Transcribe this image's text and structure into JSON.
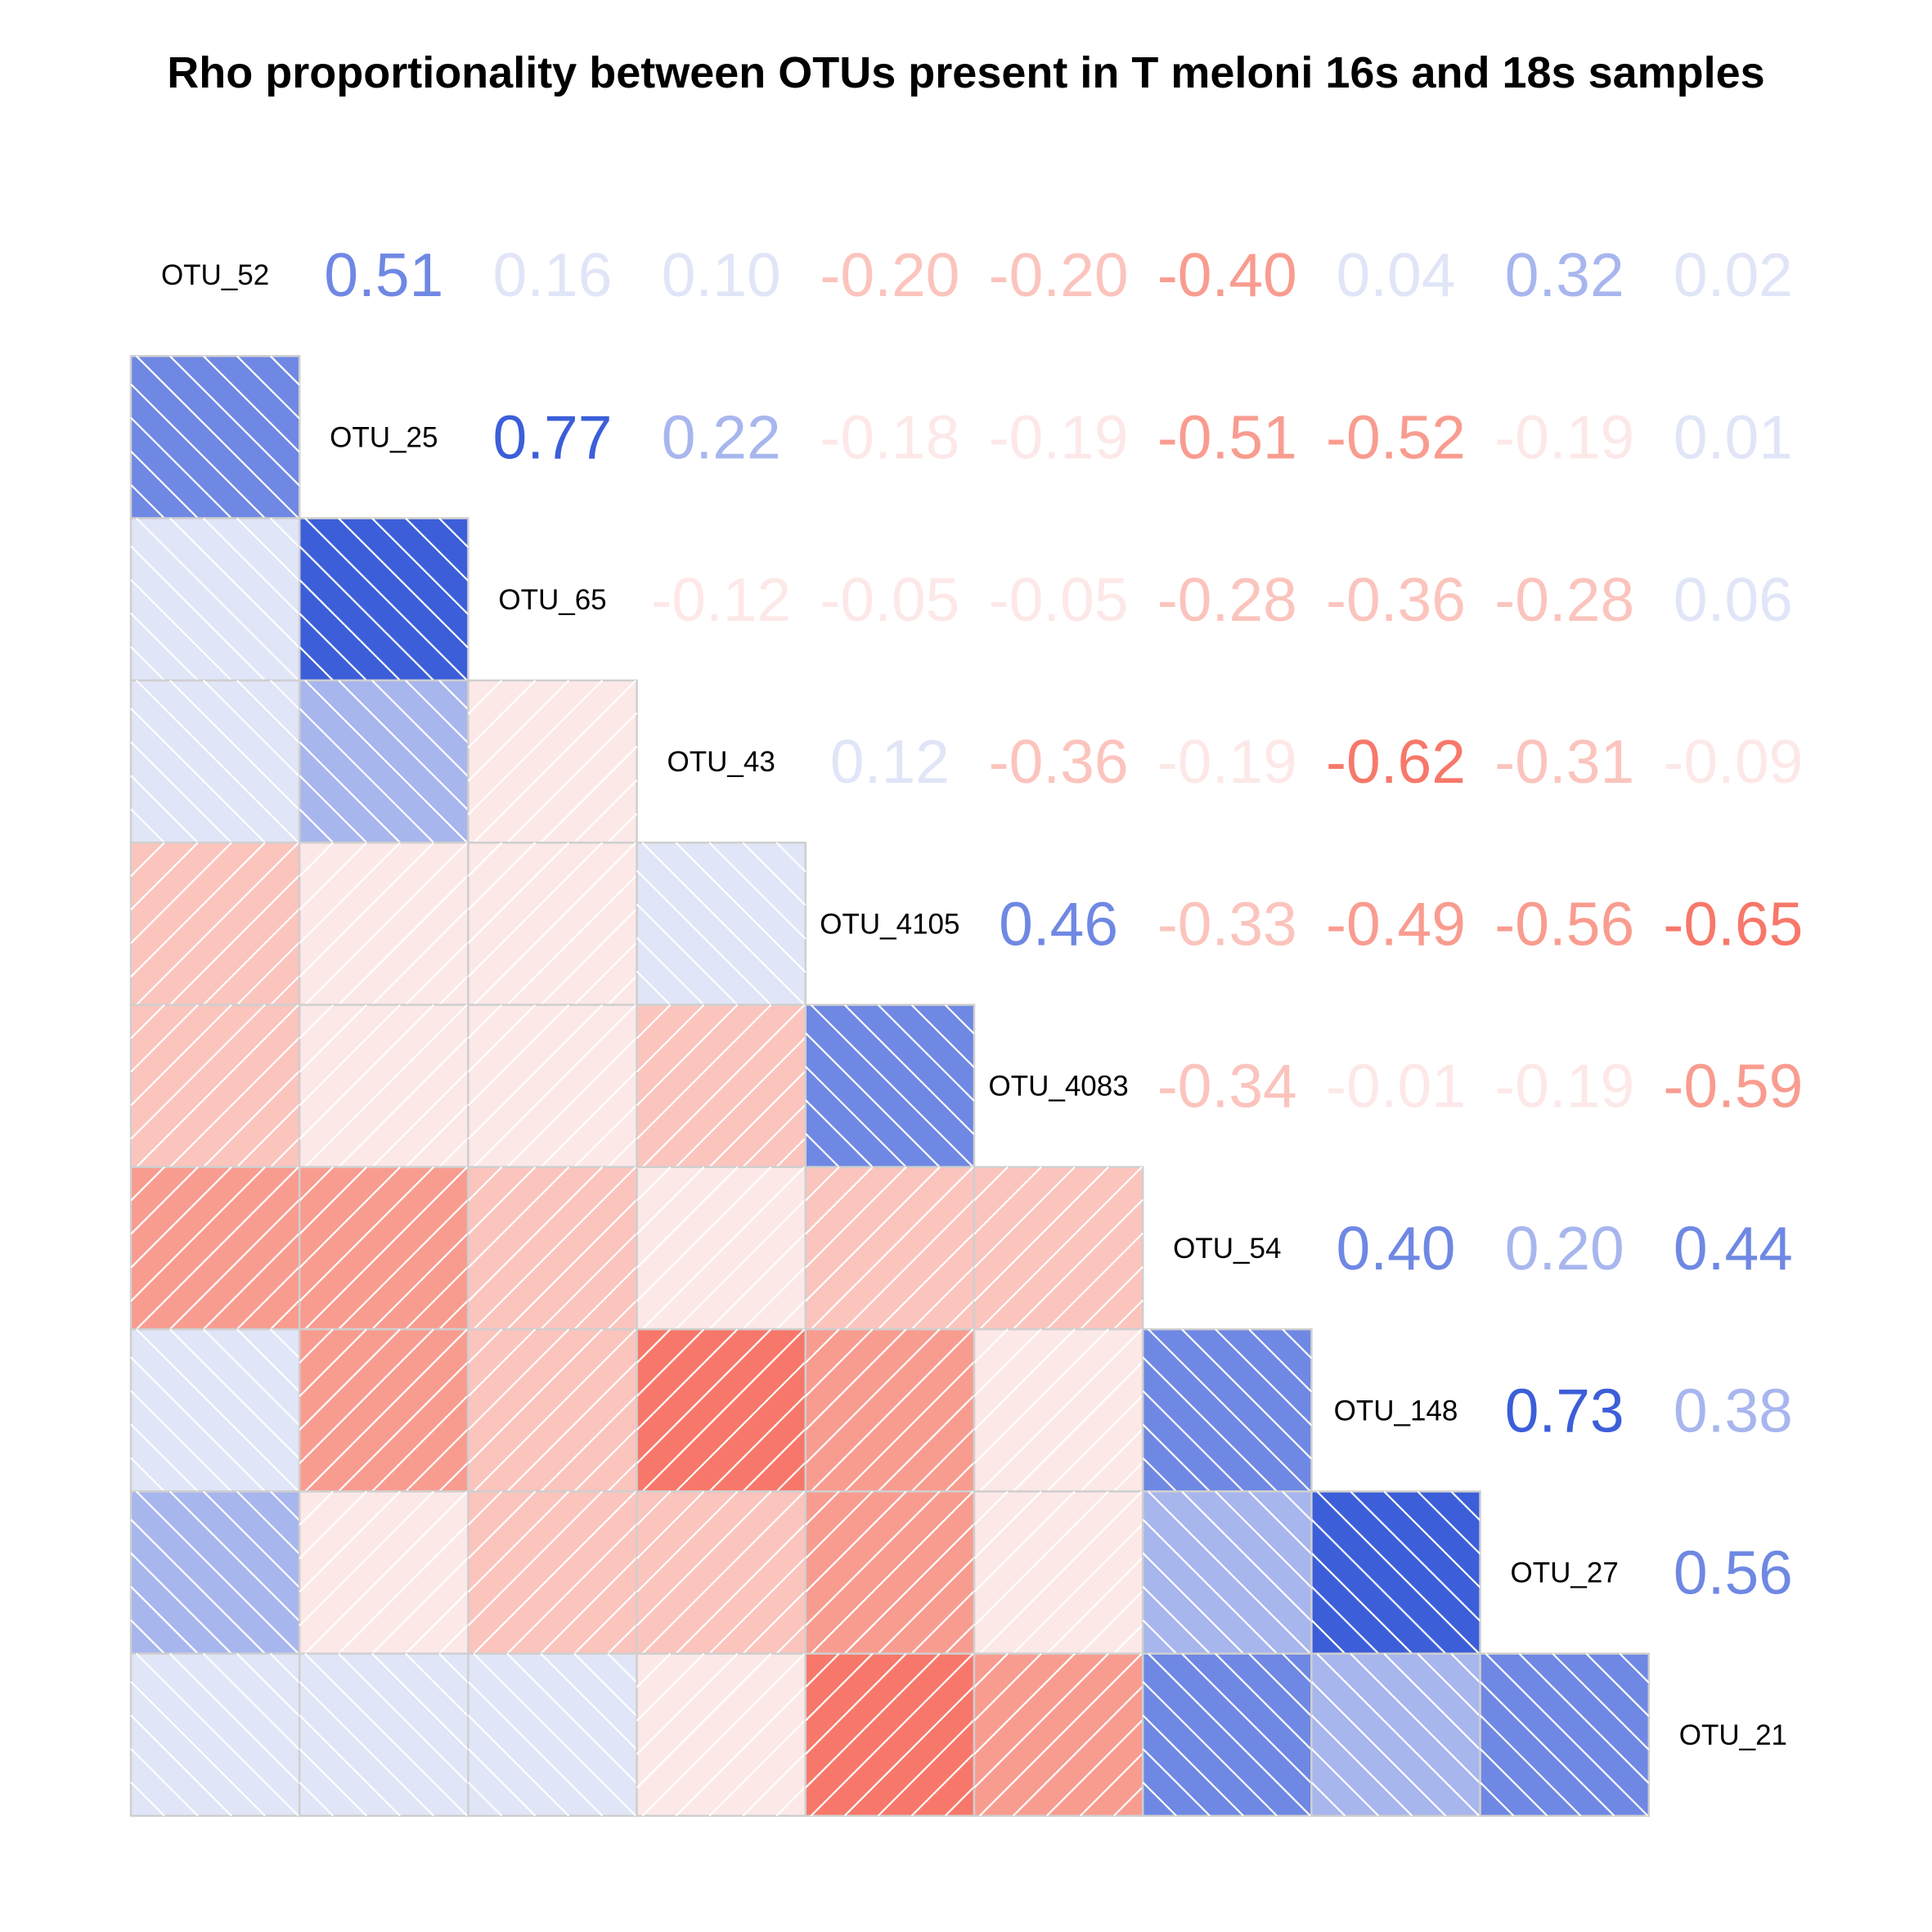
{
  "chart_data": {
    "type": "heatmap",
    "title": "Rho proportionality between OTUs present in T meloni 16s and 18s samples",
    "variables": [
      "OTU_52",
      "OTU_25",
      "OTU_65",
      "OTU_43",
      "OTU_4105",
      "OTU_4083",
      "OTU_54",
      "OTU_148",
      "OTU_27",
      "OTU_21"
    ],
    "matrix": [
      [
        1,
        0.51,
        0.16,
        0.1,
        -0.2,
        -0.2,
        -0.4,
        0.04,
        0.32,
        0.02
      ],
      [
        0.51,
        1,
        0.77,
        0.22,
        -0.18,
        -0.19,
        -0.51,
        -0.52,
        -0.19,
        0.01
      ],
      [
        0.16,
        0.77,
        1,
        -0.12,
        -0.05,
        -0.05,
        -0.28,
        -0.36,
        -0.28,
        0.06
      ],
      [
        0.1,
        0.22,
        -0.12,
        1,
        0.12,
        -0.36,
        -0.19,
        -0.62,
        -0.31,
        -0.09
      ],
      [
        -0.2,
        -0.18,
        -0.05,
        0.12,
        1,
        0.46,
        -0.33,
        -0.49,
        -0.56,
        -0.65
      ],
      [
        -0.2,
        -0.19,
        -0.05,
        -0.36,
        0.46,
        1,
        -0.34,
        -0.01,
        -0.19,
        -0.59
      ],
      [
        -0.4,
        -0.51,
        -0.28,
        -0.19,
        -0.33,
        -0.34,
        1,
        0.4,
        0.2,
        0.44
      ],
      [
        0.04,
        -0.52,
        -0.36,
        -0.62,
        -0.49,
        -0.01,
        0.4,
        1,
        0.73,
        0.38
      ],
      [
        0.32,
        -0.19,
        -0.28,
        -0.31,
        -0.56,
        -0.19,
        0.2,
        0.73,
        1,
        0.56
      ],
      [
        0.02,
        0.01,
        0.06,
        -0.09,
        -0.65,
        -0.59,
        0.44,
        0.38,
        0.56,
        1
      ]
    ],
    "lower_panel": "shade",
    "upper_panel": "value",
    "color_scale": {
      "negative": [
        "#fde8e8",
        "#fbc4bd",
        "#f99c90",
        "#f7786a",
        "#f64f4b"
      ],
      "positive": [
        "#e0e5f7",
        "#a8b6ee",
        "#6f88e3",
        "#3c5ed8",
        "#1420a0"
      ]
    }
  }
}
